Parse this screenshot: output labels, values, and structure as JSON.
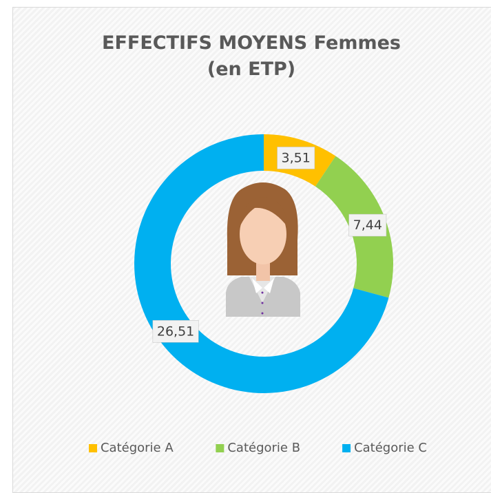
{
  "chart_data": {
    "type": "donut",
    "title": "EFFECTIFS MOYENS Femmes\n(en ETP)",
    "categories": [
      "Catégorie A",
      "Catégorie B",
      "Catégorie C"
    ],
    "values": [
      3.51,
      7.44,
      26.51
    ],
    "value_labels": [
      "3,51",
      "7,44",
      "26,51"
    ],
    "colors": [
      "#FFC000",
      "#92D050",
      "#00B0F0"
    ],
    "legend": "bottom"
  }
}
